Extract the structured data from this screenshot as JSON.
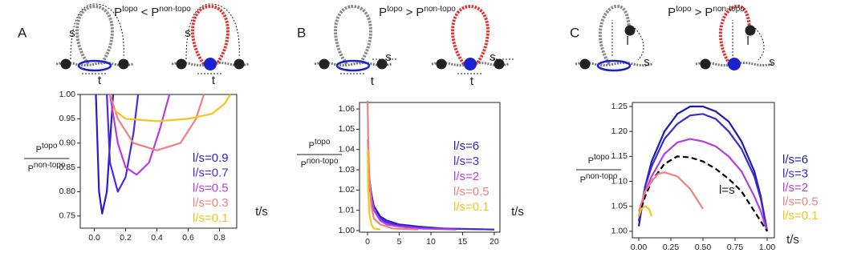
{
  "chart_data": [
    {
      "type": "line",
      "panel_label": "A",
      "title": {
        "lhs_base": "P",
        "lhs_sup": "topo",
        "op": "<",
        "rhs_base": "P",
        "rhs_sup": "non-topo"
      },
      "diagram_labels": [
        "s",
        "t",
        "s",
        "t"
      ],
      "ylabel": {
        "num_base": "P",
        "num_sup": "topo",
        "den_base": "P",
        "den_sup": "non-topo"
      },
      "xlabel": "t/s",
      "xlim": [
        -0.09,
        0.91
      ],
      "ylim": [
        0.725,
        1.0
      ],
      "xticks": [
        {
          "value": 0,
          "label": "0.0"
        },
        0.2,
        0.4,
        0.6,
        0.8
      ],
      "yticks": [
        0.75,
        {
          "value": 0.8,
          "label": "0.80"
        },
        0.85,
        {
          "value": 0.9,
          "label": "0.90"
        },
        0.95,
        {
          "value": 1.0,
          "label": "1.00"
        }
      ],
      "series": [
        {
          "name": "l/s=0.9",
          "color": "#2a1cc8",
          "x": [
            0.01,
            0.03,
            0.05,
            0.08,
            0.1,
            0.12
          ],
          "values": [
            1.0,
            0.8,
            0.755,
            0.8,
            0.9,
            1.0
          ]
        },
        {
          "name": "l/s=0.7",
          "color": "#4b2ae6",
          "x": [
            0.08,
            0.1,
            0.15,
            0.2,
            0.25,
            0.28
          ],
          "values": [
            1.0,
            0.86,
            0.8,
            0.83,
            0.92,
            1.0
          ]
        },
        {
          "name": "l/s=0.5",
          "color": "#b43ee0",
          "x": [
            0.1,
            0.15,
            0.2,
            0.27,
            0.35,
            0.42,
            0.48
          ],
          "values": [
            1.0,
            0.9,
            0.85,
            0.835,
            0.86,
            0.93,
            1.0
          ]
        },
        {
          "name": "l/s=0.3",
          "color": "#f08080",
          "x": [
            0.1,
            0.15,
            0.25,
            0.4,
            0.55,
            0.65,
            0.7
          ],
          "values": [
            1.0,
            0.95,
            0.9,
            0.885,
            0.9,
            0.95,
            1.0
          ]
        },
        {
          "name": "l/s=0.1",
          "color": "#f5c518",
          "x": [
            0.12,
            0.2,
            0.4,
            0.6,
            0.75,
            0.83,
            0.87
          ],
          "values": [
            0.97,
            0.95,
            0.945,
            0.95,
            0.96,
            0.98,
            1.0
          ]
        }
      ]
    },
    {
      "type": "line",
      "panel_label": "B",
      "title": {
        "lhs_base": "P",
        "lhs_sup": "topo",
        "op": ">",
        "rhs_base": "P",
        "rhs_sup": "non-topo"
      },
      "diagram_labels": [
        "s",
        "t",
        "s",
        "t"
      ],
      "ylabel": {
        "num_base": "P",
        "num_sup": "topo",
        "den_base": "P",
        "den_sup": "non-topo"
      },
      "xlabel": "t/s",
      "xlim": [
        -1.27,
        20.9
      ],
      "ylim": [
        0.9992,
        1.0632
      ],
      "xticks": [
        0,
        5,
        10,
        15,
        20
      ],
      "yticks": [
        {
          "value": 1.0,
          "label": "1.00"
        },
        1.01,
        1.02,
        1.03,
        1.04,
        1.05,
        1.06
      ],
      "series": [
        {
          "name": "l/s=6",
          "color": "#2a1cc8",
          "x": [
            0.1,
            0.3,
            0.6,
            1,
            2,
            3,
            5,
            8,
            12,
            20
          ],
          "values": [
            1.035,
            1.025,
            1.018,
            1.012,
            1.007,
            1.005,
            1.003,
            1.002,
            1.001,
            1.0005
          ]
        },
        {
          "name": "l/s=3",
          "color": "#4b2ae6",
          "x": [
            0.1,
            0.3,
            0.6,
            1,
            2,
            3,
            5,
            8,
            12,
            20
          ],
          "values": [
            1.032,
            1.022,
            1.015,
            1.01,
            1.006,
            1.004,
            1.0025,
            1.0015,
            1.001,
            1.0005
          ]
        },
        {
          "name": "l/s=2",
          "color": "#b43ee0",
          "x": [
            0.05,
            0.2,
            0.5,
            1,
            2,
            3,
            5,
            8,
            14
          ],
          "values": [
            1.045,
            1.03,
            1.018,
            1.01,
            1.005,
            1.003,
            1.002,
            1.001,
            1.0005
          ]
        },
        {
          "name": "l/s=0.5",
          "color": "#f08080",
          "x": [
            0.02,
            0.1,
            0.3,
            0.6,
            1,
            2,
            4,
            8
          ],
          "values": [
            1.064,
            1.045,
            1.025,
            1.012,
            1.006,
            1.003,
            1.001,
            1.0005
          ]
        },
        {
          "name": "l/s=0.1",
          "color": "#f5c518",
          "x": [
            0.02,
            0.1,
            0.3,
            0.6,
            1,
            2
          ],
          "values": [
            1.04,
            1.02,
            1.008,
            1.003,
            1.001,
            1.0005
          ]
        }
      ]
    },
    {
      "type": "line",
      "panel_label": "C",
      "title": {
        "lhs_base": "P",
        "lhs_sup": "topo",
        "op": ">",
        "rhs_base": "P",
        "rhs_sup": "non-topo"
      },
      "diagram_labels": [
        "l",
        "s",
        "l",
        "s"
      ],
      "ylabel": {
        "num_base": "P",
        "num_sup": "topo",
        "den_base": "P",
        "den_sup": "non-topo"
      },
      "xlabel": "t/s",
      "xlim": [
        -0.05,
        1.056
      ],
      "ylim": [
        0.987,
        1.258
      ],
      "xticks": [
        {
          "value": 0,
          "label": "0.00"
        },
        0.25,
        {
          "value": 0.5,
          "label": "0.50"
        },
        0.75,
        {
          "value": 1.0,
          "label": "1.00"
        }
      ],
      "yticks": [
        {
          "value": 1.0,
          "label": "1.00"
        },
        1.05,
        {
          "value": 1.1,
          "label": "1.10"
        },
        1.15,
        {
          "value": 1.2,
          "label": "1.20"
        },
        1.25
      ],
      "series": [
        {
          "name": "l/s=6",
          "color": "#1c1ca8",
          "x": [
            0,
            0.05,
            0.1,
            0.2,
            0.3,
            0.4,
            0.5,
            0.6,
            0.7,
            0.8,
            0.9,
            0.95,
            1.0
          ],
          "values": [
            1.01,
            1.09,
            1.14,
            1.2,
            1.235,
            1.25,
            1.25,
            1.24,
            1.22,
            1.18,
            1.12,
            1.07,
            1.0
          ]
        },
        {
          "name": "l/s=3",
          "color": "#3a2ad8",
          "x": [
            0,
            0.05,
            0.1,
            0.2,
            0.3,
            0.4,
            0.5,
            0.6,
            0.7,
            0.8,
            0.9,
            0.95,
            1.0
          ],
          "values": [
            1.02,
            1.09,
            1.13,
            1.185,
            1.215,
            1.232,
            1.235,
            1.225,
            1.2,
            1.165,
            1.11,
            1.065,
            1.0
          ]
        },
        {
          "name": "l/s=2",
          "color": "#b43ee0",
          "x": [
            0,
            0.05,
            0.1,
            0.2,
            0.3,
            0.4,
            0.5,
            0.6,
            0.7,
            0.8,
            0.9,
            0.95,
            1.0
          ],
          "values": [
            1.03,
            1.08,
            1.11,
            1.155,
            1.178,
            1.185,
            1.18,
            1.17,
            1.15,
            1.12,
            1.07,
            1.04,
            1.0
          ]
        },
        {
          "name": "l=s",
          "color": "#000000",
          "linestyle": "dashed",
          "x": [
            0,
            0.05,
            0.1,
            0.2,
            0.3,
            0.4,
            0.5,
            0.6,
            0.7,
            0.8,
            0.9,
            0.95,
            1.0
          ],
          "values": [
            1.03,
            1.07,
            1.1,
            1.135,
            1.15,
            1.148,
            1.14,
            1.125,
            1.105,
            1.08,
            1.04,
            1.02,
            1.0
          ]
        },
        {
          "name": "l/s=0.5",
          "color": "#f08080",
          "x": [
            0,
            0.05,
            0.1,
            0.15,
            0.2,
            0.3,
            0.4,
            0.5
          ],
          "values": [
            1.04,
            1.08,
            1.1,
            1.115,
            1.118,
            1.11,
            1.085,
            1.045
          ]
        },
        {
          "name": "l/s=0.1",
          "color": "#f5c518",
          "x": [
            0,
            0.02,
            0.05,
            0.08,
            0.1
          ],
          "values": [
            1.03,
            1.045,
            1.05,
            1.045,
            1.03
          ]
        }
      ]
    }
  ]
}
